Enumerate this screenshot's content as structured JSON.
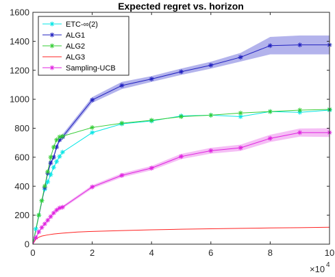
{
  "chart_data": {
    "type": "line",
    "title": "Expected regret vs. horizon",
    "xlabel": "",
    "ylabel": "",
    "xlim": [
      0,
      100000
    ],
    "ylim": [
      0,
      1600
    ],
    "x_ticks": [
      0,
      20000,
      40000,
      60000,
      80000,
      100000
    ],
    "x_tick_labels": [
      "0",
      "2",
      "4",
      "6",
      "8",
      "10"
    ],
    "x_exponent_base": "×10",
    "x_exponent_power": "4",
    "y_ticks": [
      0,
      200,
      400,
      600,
      800,
      1000,
      1200,
      1400,
      1600
    ],
    "y_tick_labels": [
      "0",
      "200",
      "400",
      "600",
      "800",
      "1000",
      "1200",
      "1400",
      "1600"
    ],
    "grid": false,
    "legend_position": "top-left",
    "series": [
      {
        "name": "ETC-∞(2)",
        "color": "#00e5e5",
        "marker": "asterisk",
        "x": [
          0,
          1000,
          2000,
          3000,
          4000,
          5000,
          6000,
          7000,
          8000,
          9000,
          10000,
          20000,
          30000,
          40000,
          50000,
          60000,
          70000,
          80000,
          90000,
          100000
        ],
        "y": [
          0,
          105,
          200,
          300,
          380,
          430,
          480,
          530,
          570,
          605,
          635,
          770,
          830,
          850,
          885,
          890,
          880,
          915,
          910,
          925
        ]
      },
      {
        "name": "ALG1",
        "color": "#1f1fbf",
        "marker": "asterisk",
        "band_color": "#9999e6",
        "x": [
          0,
          4000,
          5000,
          6000,
          7000,
          8000,
          9000,
          10000,
          20000,
          30000,
          40000,
          50000,
          60000,
          70000,
          80000,
          90000,
          100000
        ],
        "y": [
          0,
          390,
          490,
          560,
          600,
          670,
          720,
          740,
          995,
          1095,
          1140,
          1190,
          1235,
          1290,
          1370,
          1375,
          1375
        ],
        "band": [
          0,
          8,
          10,
          12,
          14,
          15,
          16,
          18,
          20,
          25,
          20,
          22,
          24,
          30,
          60,
          65,
          65
        ]
      },
      {
        "name": "ALG2",
        "color": "#33cc33",
        "marker": "asterisk",
        "x": [
          0,
          2000,
          3000,
          4000,
          5000,
          6000,
          7000,
          8000,
          9000,
          10000,
          20000,
          30000,
          40000,
          50000,
          60000,
          70000,
          80000,
          90000,
          100000
        ],
        "y": [
          0,
          200,
          300,
          400,
          500,
          600,
          670,
          720,
          740,
          745,
          805,
          835,
          855,
          880,
          890,
          905,
          915,
          925,
          930
        ]
      },
      {
        "name": "ALG3",
        "color": "#ff2020",
        "marker": "none",
        "x": [
          0,
          1000,
          2000,
          3000,
          5000,
          7000,
          10000,
          15000,
          20000,
          30000,
          40000,
          50000,
          60000,
          70000,
          80000,
          90000,
          100000
        ],
        "y": [
          0,
          35,
          48,
          56,
          64,
          70,
          76,
          84,
          88,
          94,
          99,
          103,
          106,
          109,
          112,
          114,
          117
        ]
      },
      {
        "name": "Sampling-UCB",
        "color": "#e020e0",
        "marker": "asterisk",
        "band_color": "#f2a8f2",
        "x": [
          0,
          1000,
          2000,
          3000,
          4000,
          5000,
          6000,
          7000,
          8000,
          9000,
          10000,
          20000,
          30000,
          40000,
          50000,
          60000,
          70000,
          80000,
          90000,
          100000
        ],
        "y": [
          0,
          45,
          85,
          115,
          140,
          165,
          190,
          215,
          235,
          250,
          255,
          395,
          475,
          525,
          605,
          645,
          665,
          730,
          770,
          770
        ],
        "band": [
          0,
          3,
          5,
          6,
          7,
          8,
          9,
          10,
          10,
          10,
          10,
          12,
          14,
          15,
          18,
          20,
          22,
          25,
          28,
          30
        ]
      }
    ]
  }
}
